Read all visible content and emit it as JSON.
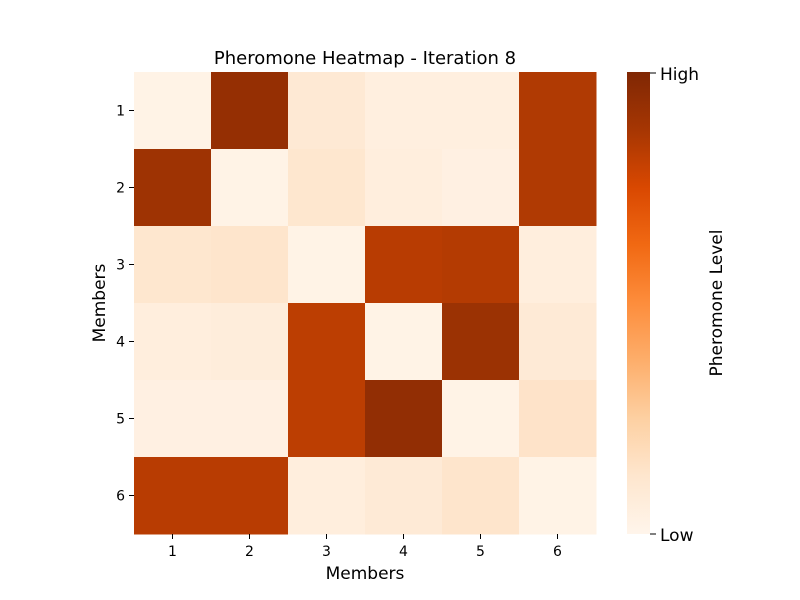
{
  "chart_data": {
    "type": "heatmap",
    "title": "Pheromone Heatmap - Iteration 8",
    "xlabel": "Members",
    "ylabel": "Members",
    "x_categories": [
      "1",
      "2",
      "3",
      "4",
      "5",
      "6"
    ],
    "y_categories": [
      "1",
      "2",
      "3",
      "4",
      "5",
      "6"
    ],
    "values": [
      [
        0.02,
        0.93,
        0.1,
        0.05,
        0.05,
        0.85
      ],
      [
        0.9,
        0.02,
        0.12,
        0.06,
        0.04,
        0.85
      ],
      [
        0.12,
        0.13,
        0.02,
        0.83,
        0.84,
        0.06
      ],
      [
        0.06,
        0.07,
        0.82,
        0.02,
        0.91,
        0.09
      ],
      [
        0.04,
        0.04,
        0.82,
        0.94,
        0.02,
        0.14
      ],
      [
        0.83,
        0.83,
        0.06,
        0.09,
        0.13,
        0.02
      ]
    ],
    "colormap": [
      "#fff5eb",
      "#fee6ce",
      "#fdd0a2",
      "#fdae6b",
      "#fd8d3c",
      "#f16913",
      "#d94801",
      "#a63603",
      "#7f2704"
    ],
    "colorbar": {
      "label": "Pheromone Level",
      "high_label": "High",
      "low_label": "Low"
    },
    "grid": false
  }
}
